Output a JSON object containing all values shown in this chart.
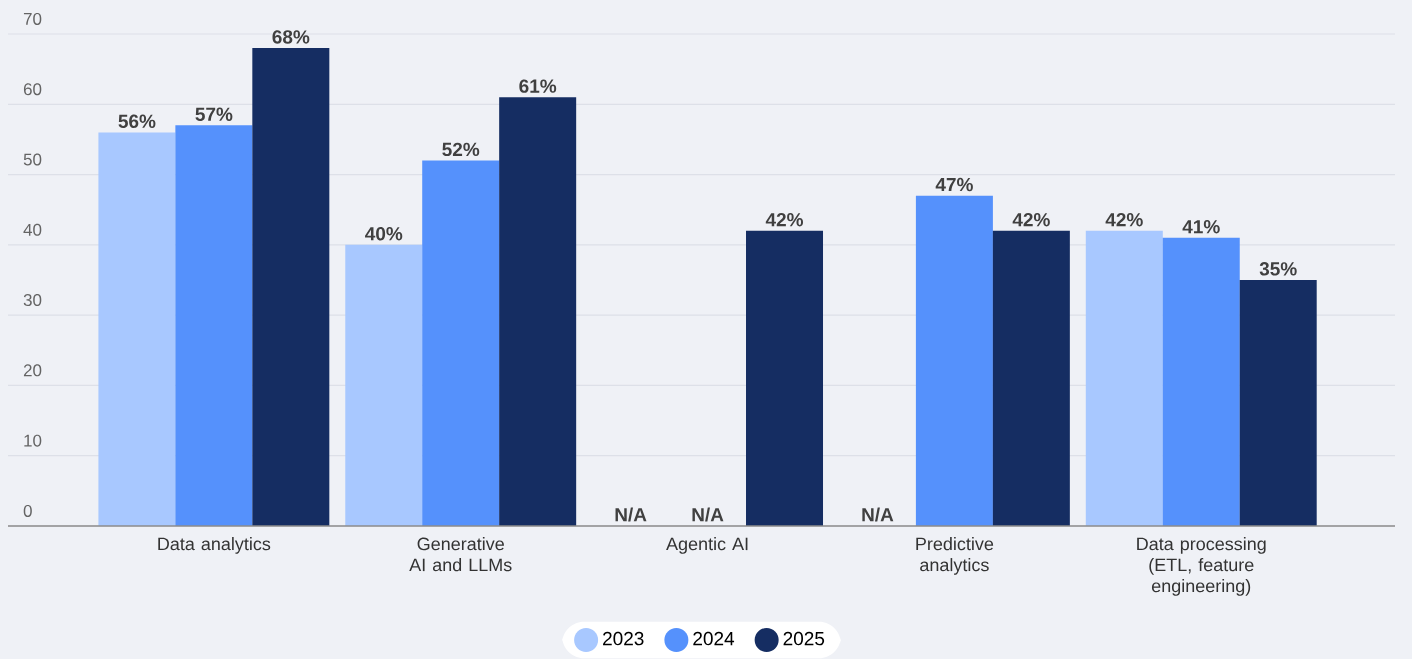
{
  "chart_data": {
    "type": "bar",
    "categories": [
      "Data analytics",
      "Generative AI and LLMs",
      "Agentic AI",
      "Predictive analytics",
      "Data processing (ETL, feature engineering)"
    ],
    "series": [
      {
        "name": "2023",
        "color": "#a8c8ff",
        "values": [
          56,
          40,
          null,
          null,
          42
        ],
        "value_labels": [
          "56%",
          "40%",
          "N/A",
          "N/A",
          "42%"
        ]
      },
      {
        "name": "2024",
        "color": "#5591fc",
        "values": [
          57,
          52,
          null,
          47,
          41
        ],
        "value_labels": [
          "57%",
          "52%",
          "N/A",
          "47%",
          "41%"
        ]
      },
      {
        "name": "2025",
        "color": "#152d62",
        "values": [
          68,
          61,
          42,
          42,
          35
        ],
        "value_labels": [
          "68%",
          "61%",
          "42%",
          "42%",
          "35%"
        ]
      }
    ],
    "ylim": [
      0,
      70
    ],
    "yticks": [
      0,
      10,
      20,
      30,
      40,
      50,
      60,
      70
    ],
    "grid": "y",
    "legend": "bottom"
  }
}
